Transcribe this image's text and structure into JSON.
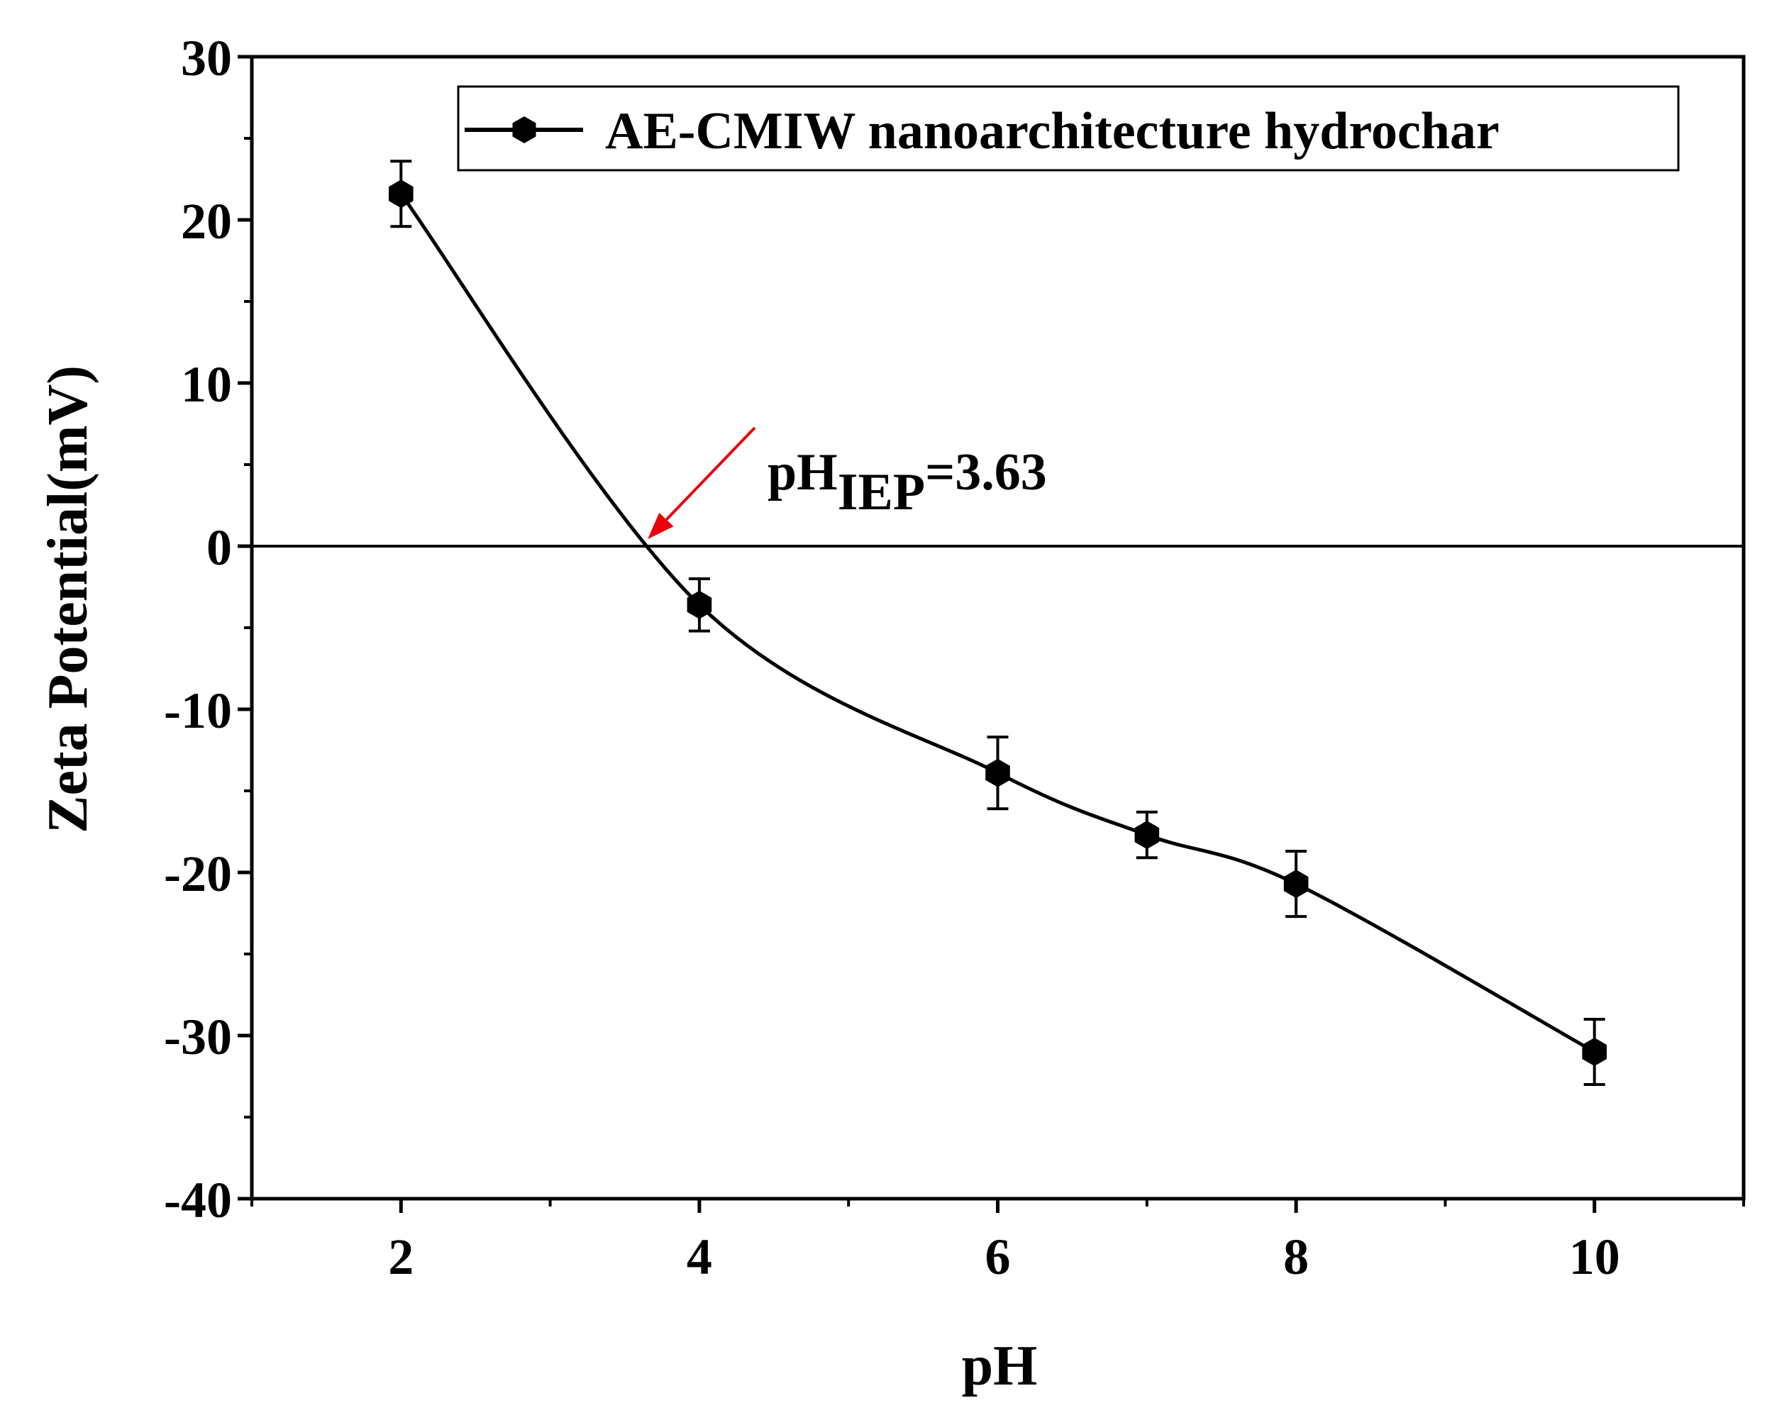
{
  "chart_data": {
    "type": "line",
    "xlabel": "pH",
    "ylabel": "Zeta Potential(mV)",
    "xlim": [
      1,
      11
    ],
    "ylim": [
      -40,
      30
    ],
    "x_ticks": [
      2,
      4,
      6,
      8,
      10
    ],
    "y_ticks": [
      -40,
      -30,
      -20,
      -10,
      0,
      10,
      20,
      30
    ],
    "grid": false,
    "legend_position": "top-right",
    "zero_line": 0,
    "series": [
      {
        "name": "AE-CMIW nanoarchitecture hydrochar",
        "color": "#000000",
        "marker": "hexagon",
        "x": [
          2,
          4,
          6,
          7,
          8,
          10
        ],
        "y": [
          21.6,
          -3.6,
          -13.9,
          -17.7,
          -20.7,
          -31.0
        ],
        "error": [
          2.0,
          1.6,
          2.2,
          1.4,
          2.0,
          2.0
        ]
      }
    ],
    "annotation": {
      "base": "pH",
      "sub": "IEP",
      "suffix": "=3.63",
      "x": 3.63,
      "y": 0,
      "arrow_color": "#e8000b"
    }
  }
}
